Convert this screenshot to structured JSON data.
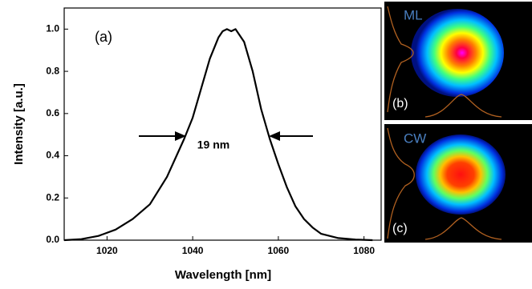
{
  "chart_data": {
    "type": "line",
    "xlabel": "Wavelength [nm]",
    "ylabel": "Intensity [a.u.]",
    "annotations": [
      "(a)",
      "19 nm"
    ],
    "x": [
      1010,
      1014,
      1018,
      1022,
      1026,
      1030,
      1034,
      1038,
      1040,
      1042,
      1044,
      1046,
      1047,
      1048,
      1049,
      1050,
      1052,
      1054,
      1056,
      1058,
      1060,
      1062,
      1064,
      1066,
      1068,
      1070,
      1074,
      1078,
      1082
    ],
    "values": [
      0,
      0.005,
      0.02,
      0.05,
      0.1,
      0.17,
      0.3,
      0.48,
      0.58,
      0.72,
      0.86,
      0.96,
      0.99,
      1.0,
      0.99,
      1.0,
      0.94,
      0.8,
      0.62,
      0.48,
      0.36,
      0.25,
      0.16,
      0.1,
      0.06,
      0.03,
      0.01,
      0.003,
      0
    ],
    "color": "#000000",
    "xlim": [
      1010,
      1084
    ],
    "ylim": [
      0,
      1.1
    ],
    "xticks": [
      1020,
      1040,
      1060,
      1080
    ],
    "yticks": [
      {
        "value": 0,
        "label": "0.0"
      },
      0.2,
      0.4,
      0.6,
      0.8,
      {
        "value": 1,
        "label": "1.0"
      }
    ]
  },
  "panels": [
    {
      "label": "ML",
      "tag": "(b)"
    },
    {
      "label": "CW",
      "tag": "(c)"
    }
  ]
}
